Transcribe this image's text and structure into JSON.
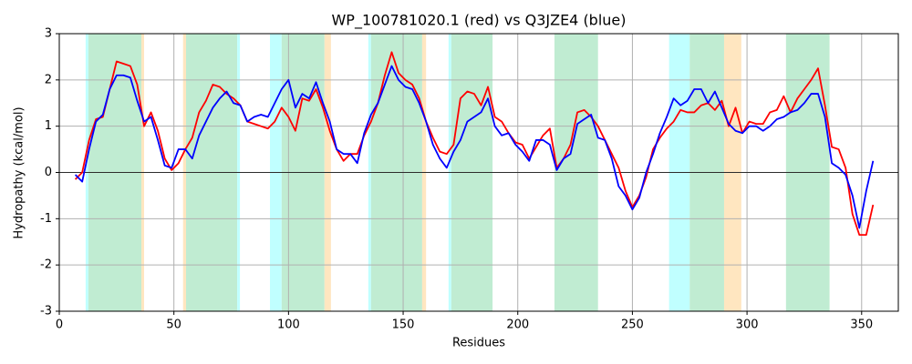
{
  "chart_data": {
    "type": "line",
    "title": "WP_100781020.1 (red) vs Q3JZE4 (blue)",
    "x_label": "Residues",
    "y_label": "Hydropathy (kcal/mol)",
    "xlim": [
      0,
      366
    ],
    "ylim": [
      -3,
      3
    ],
    "xticks": [
      0,
      50,
      100,
      150,
      200,
      250,
      300,
      350
    ],
    "yticks": [
      -3,
      -2,
      -1,
      0,
      1,
      2,
      3
    ],
    "grid": true,
    "axhline": 0,
    "regions": [
      {
        "start": 11.5,
        "end": 12.7,
        "color": "#c0ffff"
      },
      {
        "start": 12.7,
        "end": 35.8,
        "color": "#c0ecd2"
      },
      {
        "start": 35.8,
        "end": 37,
        "color": "#ffe6c0"
      },
      {
        "start": 54,
        "end": 55.3,
        "color": "#ffe6c0"
      },
      {
        "start": 55.3,
        "end": 77.6,
        "color": "#c0ecd2"
      },
      {
        "start": 77.6,
        "end": 78.8,
        "color": "#c0ffff"
      },
      {
        "start": 91.9,
        "end": 97,
        "color": "#c0ffff"
      },
      {
        "start": 97,
        "end": 115.7,
        "color": "#c0ecd2"
      },
      {
        "start": 115.7,
        "end": 118.5,
        "color": "#ffe6c0"
      },
      {
        "start": 134.8,
        "end": 136,
        "color": "#c0ffff"
      },
      {
        "start": 136,
        "end": 158.3,
        "color": "#c0ecd2"
      },
      {
        "start": 158.3,
        "end": 160,
        "color": "#ffe6c0"
      },
      {
        "start": 169.8,
        "end": 171,
        "color": "#c0ffff"
      },
      {
        "start": 171,
        "end": 189,
        "color": "#c0ecd2"
      },
      {
        "start": 216,
        "end": 235,
        "color": "#c0ecd2"
      },
      {
        "start": 266,
        "end": 275,
        "color": "#c0ffff"
      },
      {
        "start": 275,
        "end": 290,
        "color": "#c0ecd2"
      },
      {
        "start": 290,
        "end": 297.5,
        "color": "#ffe6c0"
      },
      {
        "start": 317,
        "end": 336,
        "color": "#c0ecd2"
      }
    ],
    "x": [
      7,
      10,
      13,
      16,
      19,
      22,
      25,
      28,
      31,
      34,
      37,
      40,
      43,
      46,
      49,
      52,
      55,
      58,
      61,
      64,
      67,
      70,
      73,
      76,
      79,
      82,
      85,
      88,
      91,
      94,
      97,
      100,
      103,
      106,
      109,
      112,
      115,
      118,
      121,
      124,
      127,
      130,
      133,
      136,
      139,
      142,
      145,
      148,
      151,
      154,
      157,
      160,
      163,
      166,
      169,
      172,
      175,
      178,
      181,
      184,
      187,
      190,
      193,
      196,
      199,
      202,
      205,
      208,
      211,
      214,
      217,
      220,
      223,
      226,
      229,
      232,
      235,
      238,
      241,
      244,
      247,
      250,
      253,
      256,
      259,
      262,
      265,
      268,
      271,
      274,
      277,
      280,
      283,
      286,
      289,
      292,
      295,
      298,
      301,
      304,
      307,
      310,
      313,
      316,
      319,
      322,
      325,
      328,
      331,
      334,
      337,
      340,
      343,
      346,
      349,
      352,
      355
    ],
    "series": [
      {
        "color": "#ff0000",
        "values": [
          -0.15,
          0.0,
          0.7,
          1.15,
          1.2,
          1.8,
          2.4,
          2.35,
          2.3,
          1.9,
          1.0,
          1.3,
          0.9,
          0.3,
          0.05,
          0.2,
          0.5,
          0.75,
          1.3,
          1.55,
          1.9,
          1.85,
          1.7,
          1.6,
          1.45,
          1.1,
          1.05,
          1.0,
          0.95,
          1.1,
          1.4,
          1.2,
          0.9,
          1.6,
          1.55,
          1.8,
          1.4,
          0.9,
          0.5,
          0.25,
          0.4,
          0.4,
          0.8,
          1.1,
          1.5,
          2.1,
          2.6,
          2.15,
          2.0,
          1.9,
          1.6,
          1.1,
          0.75,
          0.45,
          0.4,
          0.6,
          1.6,
          1.75,
          1.7,
          1.45,
          1.85,
          1.2,
          1.1,
          0.85,
          0.65,
          0.6,
          0.3,
          0.55,
          0.8,
          0.95,
          0.1,
          0.3,
          0.6,
          1.3,
          1.35,
          1.2,
          1.0,
          0.7,
          0.4,
          0.1,
          -0.4,
          -0.75,
          -0.5,
          -0.1,
          0.5,
          0.75,
          0.95,
          1.1,
          1.35,
          1.3,
          1.3,
          1.45,
          1.5,
          1.35,
          1.55,
          1.0,
          1.4,
          0.85,
          1.1,
          1.05,
          1.05,
          1.3,
          1.35,
          1.65,
          1.3,
          1.6,
          1.8,
          2.0,
          2.25,
          1.45,
          0.55,
          0.5,
          0.1,
          -0.9,
          -1.35,
          -1.35,
          -0.7
        ]
      },
      {
        "color": "#0000ff",
        "values": [
          -0.05,
          -0.2,
          0.5,
          1.1,
          1.25,
          1.8,
          2.1,
          2.1,
          2.05,
          1.55,
          1.1,
          1.2,
          0.7,
          0.15,
          0.1,
          0.5,
          0.5,
          0.3,
          0.8,
          1.1,
          1.4,
          1.6,
          1.75,
          1.5,
          1.45,
          1.1,
          1.2,
          1.25,
          1.2,
          1.5,
          1.8,
          2.0,
          1.4,
          1.7,
          1.6,
          1.95,
          1.5,
          1.1,
          0.5,
          0.4,
          0.4,
          0.2,
          0.85,
          1.25,
          1.5,
          1.9,
          2.3,
          2.0,
          1.85,
          1.8,
          1.5,
          1.1,
          0.6,
          0.3,
          0.1,
          0.45,
          0.7,
          1.1,
          1.2,
          1.3,
          1.6,
          1.0,
          0.8,
          0.85,
          0.6,
          0.45,
          0.25,
          0.7,
          0.7,
          0.6,
          0.05,
          0.3,
          0.4,
          1.05,
          1.15,
          1.25,
          0.75,
          0.7,
          0.3,
          -0.3,
          -0.5,
          -0.8,
          -0.55,
          0.0,
          0.4,
          0.85,
          1.2,
          1.6,
          1.45,
          1.55,
          1.8,
          1.8,
          1.5,
          1.75,
          1.4,
          1.05,
          0.9,
          0.85,
          1.0,
          1.0,
          0.9,
          1.0,
          1.15,
          1.2,
          1.3,
          1.35,
          1.5,
          1.7,
          1.7,
          1.2,
          0.2,
          0.1,
          -0.05,
          -0.5,
          -1.2,
          -0.4,
          0.25
        ]
      }
    ]
  }
}
